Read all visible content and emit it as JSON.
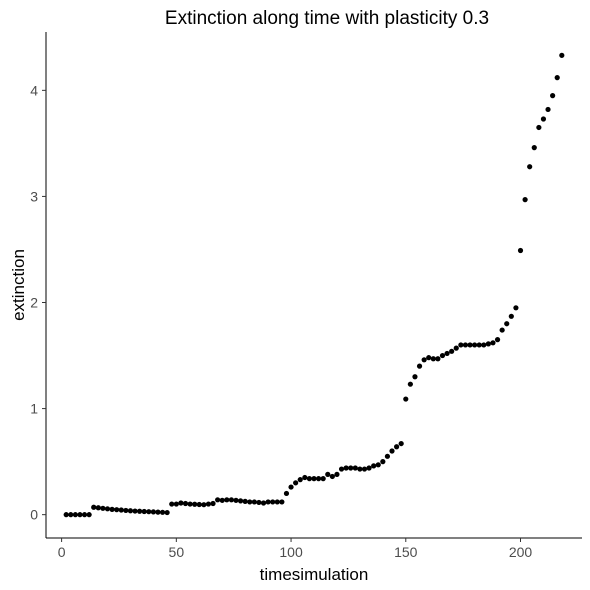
{
  "chart_data": {
    "type": "scatter",
    "title": "Extinction along time with plasticity 0.3",
    "xlabel": "timesimulation",
    "ylabel": "extinction",
    "xlim": [
      -6.8,
      226.8
    ],
    "ylim": [
      -0.22,
      4.55
    ],
    "xticks": [
      0,
      50,
      100,
      150,
      200
    ],
    "yticks": [
      0,
      1,
      2,
      3,
      4
    ],
    "grid": false,
    "point_color": "#000000",
    "points": [
      [
        2,
        0.0
      ],
      [
        4,
        0.0
      ],
      [
        6,
        0.0
      ],
      [
        8,
        0.0
      ],
      [
        10,
        0.0
      ],
      [
        12,
        0.0
      ],
      [
        14,
        0.07
      ],
      [
        16,
        0.065
      ],
      [
        18,
        0.06
      ],
      [
        20,
        0.055
      ],
      [
        22,
        0.05
      ],
      [
        24,
        0.047
      ],
      [
        26,
        0.044
      ],
      [
        28,
        0.04
      ],
      [
        30,
        0.037
      ],
      [
        32,
        0.034
      ],
      [
        34,
        0.032
      ],
      [
        36,
        0.03
      ],
      [
        38,
        0.028
      ],
      [
        40,
        0.026
      ],
      [
        42,
        0.024
      ],
      [
        44,
        0.022
      ],
      [
        46,
        0.02
      ],
      [
        48,
        0.1
      ],
      [
        50,
        0.1
      ],
      [
        52,
        0.11
      ],
      [
        54,
        0.105
      ],
      [
        56,
        0.1
      ],
      [
        58,
        0.098
      ],
      [
        60,
        0.096
      ],
      [
        62,
        0.094
      ],
      [
        64,
        0.1
      ],
      [
        66,
        0.105
      ],
      [
        68,
        0.14
      ],
      [
        70,
        0.135
      ],
      [
        72,
        0.14
      ],
      [
        74,
        0.14
      ],
      [
        76,
        0.135
      ],
      [
        78,
        0.13
      ],
      [
        80,
        0.125
      ],
      [
        82,
        0.12
      ],
      [
        84,
        0.12
      ],
      [
        86,
        0.115
      ],
      [
        88,
        0.11
      ],
      [
        90,
        0.12
      ],
      [
        92,
        0.12
      ],
      [
        94,
        0.12
      ],
      [
        96,
        0.12
      ],
      [
        98,
        0.2
      ],
      [
        100,
        0.26
      ],
      [
        102,
        0.3
      ],
      [
        104,
        0.33
      ],
      [
        106,
        0.35
      ],
      [
        108,
        0.34
      ],
      [
        110,
        0.34
      ],
      [
        112,
        0.34
      ],
      [
        114,
        0.34
      ],
      [
        116,
        0.38
      ],
      [
        118,
        0.36
      ],
      [
        120,
        0.38
      ],
      [
        122,
        0.43
      ],
      [
        124,
        0.44
      ],
      [
        126,
        0.44
      ],
      [
        128,
        0.44
      ],
      [
        130,
        0.43
      ],
      [
        132,
        0.43
      ],
      [
        134,
        0.44
      ],
      [
        136,
        0.46
      ],
      [
        138,
        0.47
      ],
      [
        140,
        0.5
      ],
      [
        142,
        0.55
      ],
      [
        144,
        0.6
      ],
      [
        146,
        0.64
      ],
      [
        148,
        0.67
      ],
      [
        150,
        1.09
      ],
      [
        152,
        1.23
      ],
      [
        154,
        1.3
      ],
      [
        156,
        1.4
      ],
      [
        158,
        1.46
      ],
      [
        160,
        1.48
      ],
      [
        162,
        1.47
      ],
      [
        164,
        1.47
      ],
      [
        166,
        1.5
      ],
      [
        168,
        1.52
      ],
      [
        170,
        1.54
      ],
      [
        172,
        1.57
      ],
      [
        174,
        1.6
      ],
      [
        176,
        1.6
      ],
      [
        178,
        1.6
      ],
      [
        180,
        1.6
      ],
      [
        182,
        1.6
      ],
      [
        184,
        1.6
      ],
      [
        186,
        1.61
      ],
      [
        188,
        1.62
      ],
      [
        190,
        1.65
      ],
      [
        192,
        1.74
      ],
      [
        194,
        1.8
      ],
      [
        196,
        1.87
      ],
      [
        198,
        1.95
      ],
      [
        200,
        2.49
      ],
      [
        202,
        2.97
      ],
      [
        204,
        3.28
      ],
      [
        206,
        3.46
      ],
      [
        208,
        3.65
      ],
      [
        210,
        3.73
      ],
      [
        212,
        3.82
      ],
      [
        214,
        3.95
      ],
      [
        216,
        4.12
      ],
      [
        218,
        4.33
      ]
    ]
  }
}
